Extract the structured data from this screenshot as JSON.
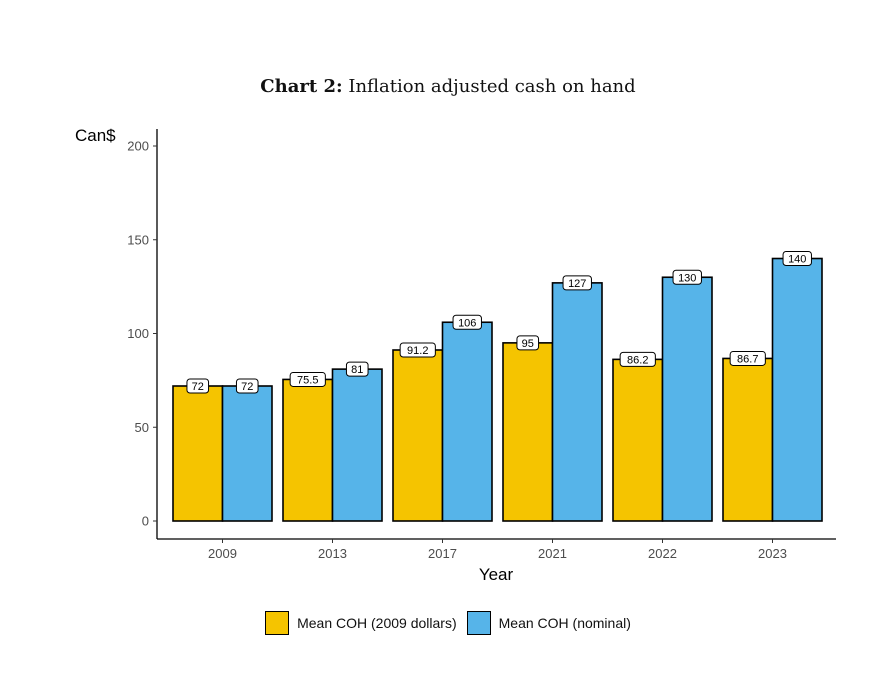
{
  "chart_data": {
    "type": "bar",
    "title_prefix": "Chart 2:",
    "title": "Inflation adjusted cash on hand",
    "xlabel": "Year",
    "ylabel": "Can$",
    "ylim": [
      0,
      200
    ],
    "yticks": [
      0,
      50,
      100,
      150,
      200
    ],
    "categories": [
      "2009",
      "2013",
      "2017",
      "2021",
      "2022",
      "2023"
    ],
    "series": [
      {
        "name": "Mean COH (2009 dollars)",
        "color": "#F5C400",
        "values": [
          72,
          75.5,
          91.2,
          95,
          86.2,
          86.7
        ]
      },
      {
        "name": "Mean COH (nominal)",
        "color": "#56B4E9",
        "values": [
          72,
          81,
          106,
          127,
          130,
          140
        ]
      }
    ],
    "legend_position": "bottom",
    "grid": false
  }
}
